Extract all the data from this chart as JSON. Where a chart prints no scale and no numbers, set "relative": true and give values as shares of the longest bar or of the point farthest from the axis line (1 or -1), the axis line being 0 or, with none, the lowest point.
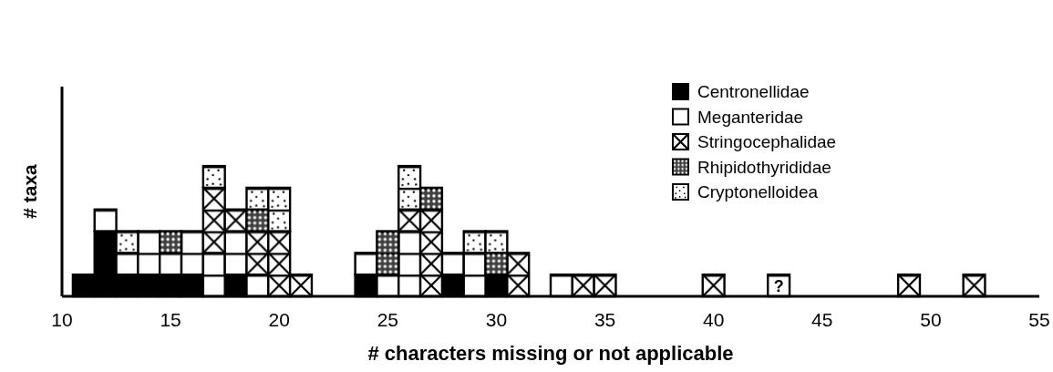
{
  "chart_data": {
    "type": "bar",
    "stacked": true,
    "relative": true,
    "xlabel": "# characters missing or not applicable",
    "ylabel": "# taxa",
    "xlim": [
      10,
      55
    ],
    "xticks": [
      10,
      15,
      20,
      25,
      30,
      35,
      40,
      45,
      50,
      55
    ],
    "legend": "top right",
    "x": [
      11,
      12,
      13,
      14,
      15,
      16,
      17,
      18,
      19,
      20,
      21,
      24,
      25,
      26,
      27,
      28,
      29,
      30,
      31,
      33,
      34,
      35,
      40,
      43,
      49,
      52
    ],
    "series": [
      {
        "name": "Centronellidae",
        "color": "#000000",
        "values": [
          0.1667,
          0.5,
          0.1667,
          0.1667,
          0.1667,
          0.1667,
          0,
          0.1667,
          0,
          0,
          0,
          0.1667,
          0,
          0,
          0,
          0.1667,
          0,
          0.1667,
          0,
          0,
          0,
          0,
          0,
          0,
          0,
          0
        ]
      },
      {
        "name": "Meganteridae",
        "color": "#ffffff",
        "values": [
          0,
          0.1667,
          0.1667,
          0.3333,
          0.1667,
          0.3333,
          0.3333,
          0.3333,
          0.1667,
          0,
          0,
          0.1667,
          0.1667,
          0.5,
          0,
          0.1667,
          0.3333,
          0,
          0,
          0.1667,
          0,
          0,
          0,
          0,
          0,
          0
        ]
      },
      {
        "name": "Stringocephalidae",
        "color": "#ffffff",
        "values": [
          0,
          0,
          0,
          0,
          0,
          0,
          0.5,
          0.1667,
          0.3333,
          0.5,
          0.1667,
          0,
          0,
          0.1667,
          0.6667,
          0,
          0,
          0,
          0.3333,
          0,
          0.1667,
          0.1667,
          0.1667,
          0,
          0.1667,
          0.1667
        ]
      },
      {
        "name": "Rhipidothyrididae",
        "color": "#404040",
        "values": [
          0,
          0,
          0,
          0,
          0.1667,
          0,
          0,
          0,
          0.1667,
          0,
          0,
          0,
          0.3333,
          0,
          0.1667,
          0,
          0,
          0.1667,
          0,
          0,
          0,
          0,
          0,
          0,
          0,
          0
        ]
      },
      {
        "name": "Cryptonelloidea",
        "color": "#ffffff",
        "values": [
          0,
          0,
          0.1667,
          0,
          0,
          0,
          0.1667,
          0,
          0.1667,
          0.3333,
          0,
          0,
          0,
          0.3333,
          0,
          0,
          0.1667,
          0.1667,
          0,
          0,
          0,
          0,
          0,
          0,
          0,
          0
        ]
      },
      {
        "color": "#ffffff",
        "values": [
          0,
          0,
          0,
          0,
          0,
          0,
          0,
          0,
          0,
          0,
          0,
          0,
          0,
          0,
          0,
          0,
          0,
          0,
          0,
          0,
          0,
          0,
          0,
          0.1667,
          0,
          0
        ]
      }
    ],
    "annotations": [
      "?"
    ]
  }
}
